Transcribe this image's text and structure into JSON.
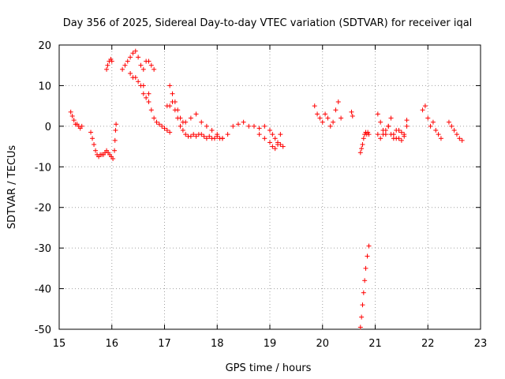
{
  "chart_data": {
    "type": "scatter",
    "title": "Day 356 of 2025, Sidereal Day-to-day VTEC variation (SDTVAR) for receiver iqal",
    "xlabel": "GPS time / hours",
    "ylabel": "SDTVAR / TECUs",
    "xlim": [
      15,
      23
    ],
    "ylim": [
      -50,
      20
    ],
    "xticks": [
      15,
      16,
      17,
      18,
      19,
      20,
      21,
      22,
      23
    ],
    "yticks": [
      -50,
      -40,
      -30,
      -20,
      -10,
      0,
      10,
      20
    ],
    "grid": true,
    "marker": "+",
    "color": "#ff0000",
    "series": [
      {
        "name": "SDTVAR",
        "x": [
          15.22,
          15.25,
          15.28,
          15.31,
          15.34,
          15.37,
          15.4,
          15.43,
          15.6,
          15.63,
          15.66,
          15.69,
          15.72,
          15.75,
          15.78,
          15.81,
          15.84,
          15.87,
          15.9,
          15.93,
          15.96,
          15.99,
          16.02,
          16.05,
          16.06,
          16.07,
          16.08,
          15.9,
          15.92,
          15.95,
          15.98,
          16.0,
          16.2,
          16.25,
          16.3,
          16.35,
          16.4,
          16.45,
          16.5,
          16.55,
          16.6,
          16.65,
          16.7,
          16.75,
          16.8,
          16.55,
          16.6,
          16.65,
          16.7,
          16.75,
          16.8,
          16.85,
          16.9,
          16.95,
          17.0,
          17.05,
          17.1,
          16.35,
          16.4,
          16.45,
          16.5,
          16.6,
          16.7,
          17.05,
          17.1,
          17.15,
          17.2,
          17.25,
          17.3,
          17.35,
          17.4,
          17.45,
          17.5,
          17.55,
          17.6,
          17.65,
          17.7,
          17.75,
          17.8,
          17.85,
          17.9,
          17.95,
          18.0,
          18.05,
          18.1,
          17.1,
          17.15,
          17.2,
          17.25,
          17.3,
          17.35,
          17.4,
          17.5,
          17.6,
          17.7,
          17.8,
          17.9,
          18.0,
          18.1,
          18.2,
          18.3,
          18.4,
          18.5,
          18.6,
          18.7,
          18.8,
          18.9,
          19.0,
          19.05,
          19.1,
          19.15,
          19.2,
          19.25,
          18.8,
          18.9,
          19.0,
          19.05,
          19.1,
          19.15,
          19.2,
          19.85,
          19.9,
          19.95,
          20.0,
          20.05,
          20.1,
          20.15,
          20.2,
          20.25,
          20.3,
          20.35,
          20.55,
          20.57,
          20.72,
          20.74,
          20.76,
          20.78,
          20.8,
          20.82,
          20.84,
          20.86,
          20.88,
          20.72,
          20.74,
          20.76,
          20.78,
          20.8,
          20.82,
          20.85,
          20.88,
          21.05,
          21.1,
          21.15,
          21.2,
          21.25,
          21.3,
          21.35,
          21.4,
          21.45,
          21.5,
          21.55,
          21.6,
          21.05,
          21.1,
          21.15,
          21.2,
          21.25,
          21.3,
          21.35,
          21.4,
          21.45,
          21.5,
          21.55,
          21.6,
          21.9,
          21.95,
          22.0,
          22.05,
          22.1,
          22.15,
          22.2,
          22.25,
          22.4,
          22.45,
          22.5,
          22.55,
          22.6,
          22.65
        ],
        "y": [
          3.5,
          2.5,
          1.5,
          0.5,
          0.5,
          0,
          -0.5,
          0,
          -1.5,
          -3,
          -4.5,
          -6,
          -7,
          -7.5,
          -7,
          -7,
          -7,
          -6.5,
          -6,
          -6.5,
          -7,
          -7.5,
          -8,
          -6,
          -3.5,
          -1,
          0.5,
          14,
          15,
          16,
          16.5,
          16,
          14,
          15,
          16,
          17,
          18,
          18.5,
          17,
          15,
          14,
          16,
          16,
          15,
          14,
          10,
          8,
          7,
          6,
          4,
          2,
          1,
          0.5,
          0,
          -0.5,
          -1,
          -1.5,
          13,
          12,
          12,
          11,
          10,
          8,
          5,
          5,
          6,
          4,
          2,
          0,
          -1,
          -2,
          -2.5,
          -2.5,
          -2,
          -2.5,
          -2,
          -2,
          -2.5,
          -3,
          -2.5,
          -3,
          -3,
          -2.5,
          -3,
          -3,
          10,
          8,
          6,
          4,
          2,
          1,
          1,
          2,
          3,
          1,
          0,
          -1,
          -2,
          -3,
          -2,
          0,
          0.5,
          1,
          0,
          0,
          -0.5,
          0,
          -1,
          -2,
          -3,
          -4,
          -4.5,
          -5,
          -2,
          -3,
          -4,
          -5,
          -5.5,
          -4.5,
          -2,
          5,
          3,
          2,
          1,
          3,
          2,
          0,
          1,
          4,
          6,
          2,
          3.5,
          2.5,
          -6.5,
          -5.5,
          -4.5,
          -3,
          -2,
          -1.5,
          -2,
          -1.5,
          -2,
          -49.5,
          -47,
          -44,
          -41,
          -38,
          -35,
          -32,
          -29.5,
          3,
          1,
          -1,
          -2,
          0,
          2,
          -2,
          -3,
          -1,
          -1.5,
          -2.5,
          1.5,
          -2,
          -3,
          -2,
          -1,
          0,
          -2,
          -3,
          -1,
          -3,
          -3.5,
          -2,
          0,
          4,
          5,
          2,
          0,
          1,
          -1,
          -2,
          -3,
          1,
          0,
          -1,
          -2,
          -3,
          -3.5
        ]
      }
    ]
  }
}
